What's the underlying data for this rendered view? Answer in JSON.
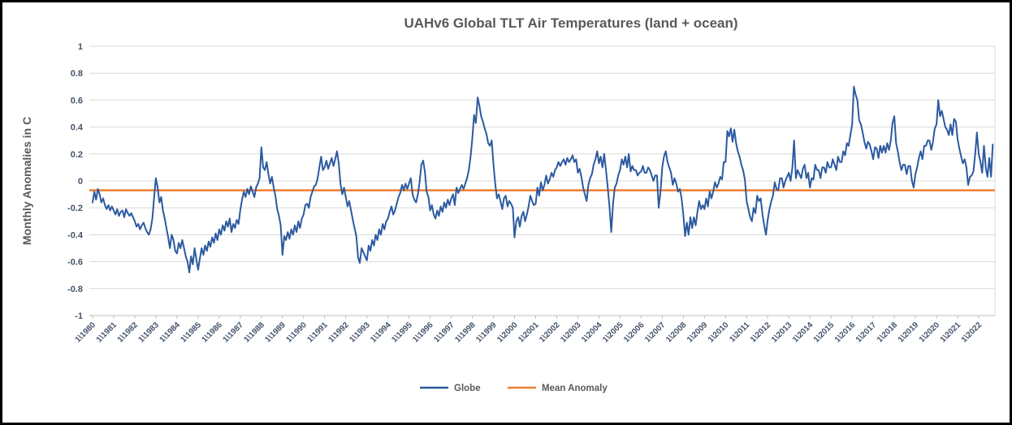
{
  "chart_data": {
    "type": "line",
    "title": "UAHv6 Global TLT Air Temperatures (land + ocean)",
    "xlabel": "",
    "ylabel": "Monthly Anomalies in C",
    "ylim": [
      -1,
      1
    ],
    "grid": true,
    "legend_position": "bottom",
    "colors": {
      "globe_line": "#2C5AA0",
      "mean_line": "#ED7D31",
      "gridline": "#D9D9D9",
      "axis_line": "#BFBFBF",
      "tick_text": "#44546A",
      "title_text": "#595959"
    },
    "y_tick_labels": [
      "1",
      "0.8",
      "0.6",
      "0.4",
      "0.2",
      "0",
      "-0.2",
      "-0.4",
      "-0.6",
      "-0.8",
      "-1"
    ],
    "y_tick_values": [
      1,
      0.8,
      0.6,
      0.4,
      0.2,
      0,
      -0.2,
      -0.4,
      -0.6,
      -0.8,
      -1
    ],
    "x_tick_labels": [
      "1\\1980",
      "1\\1981",
      "1\\1982",
      "1\\1983",
      "1\\1984",
      "1\\1985",
      "1\\1986",
      "1\\1987",
      "1\\1988",
      "1\\1989",
      "1\\1990",
      "1\\1991",
      "1\\1992",
      "1\\1993",
      "1\\1994",
      "1\\1995",
      "1\\1996",
      "1\\1997",
      "1\\1998",
      "1\\1999",
      "1\\2000",
      "1\\2001",
      "1\\2002",
      "1\\2003",
      "1\\2004",
      "1\\2005",
      "1\\2006",
      "1\\2007",
      "1\\2008",
      "1\\2009",
      "1\\2010",
      "1\\2011",
      "1\\2012",
      "1\\2013",
      "1\\2014",
      "1\\2015",
      "1\\2016",
      "1\\2017",
      "1\\2018",
      "1\\2019",
      "1\\2020",
      "1\\2021",
      "1\\2022"
    ],
    "x_start_month": "1980-01",
    "x_end_month": "2022-09",
    "series": [
      {
        "name": "Globe",
        "values": [
          -0.16,
          -0.08,
          -0.14,
          -0.06,
          -0.1,
          -0.16,
          -0.13,
          -0.18,
          -0.21,
          -0.18,
          -0.22,
          -0.19,
          -0.22,
          -0.25,
          -0.21,
          -0.26,
          -0.23,
          -0.22,
          -0.27,
          -0.21,
          -0.24,
          -0.26,
          -0.24,
          -0.27,
          -0.3,
          -0.34,
          -0.32,
          -0.36,
          -0.33,
          -0.31,
          -0.35,
          -0.38,
          -0.4,
          -0.36,
          -0.28,
          -0.12,
          0.02,
          -0.05,
          -0.16,
          -0.12,
          -0.22,
          -0.28,
          -0.35,
          -0.42,
          -0.5,
          -0.4,
          -0.44,
          -0.52,
          -0.54,
          -0.46,
          -0.5,
          -0.44,
          -0.5,
          -0.56,
          -0.6,
          -0.68,
          -0.56,
          -0.62,
          -0.5,
          -0.58,
          -0.66,
          -0.58,
          -0.5,
          -0.55,
          -0.48,
          -0.52,
          -0.45,
          -0.49,
          -0.42,
          -0.46,
          -0.39,
          -0.44,
          -0.36,
          -0.4,
          -0.33,
          -0.37,
          -0.3,
          -0.34,
          -0.28,
          -0.38,
          -0.32,
          -0.35,
          -0.29,
          -0.32,
          -0.22,
          -0.14,
          -0.08,
          -0.12,
          -0.06,
          -0.1,
          -0.04,
          -0.08,
          -0.12,
          -0.05,
          -0.02,
          0.02,
          0.25,
          0.1,
          0.08,
          0.14,
          0.05,
          -0.02,
          0.03,
          -0.05,
          -0.11,
          -0.21,
          -0.26,
          -0.33,
          -0.55,
          -0.41,
          -0.44,
          -0.38,
          -0.43,
          -0.36,
          -0.4,
          -0.33,
          -0.38,
          -0.3,
          -0.35,
          -0.28,
          -0.25,
          -0.18,
          -0.17,
          -0.2,
          -0.12,
          -0.08,
          -0.04,
          -0.03,
          0.02,
          0.1,
          0.18,
          0.08,
          0.1,
          0.15,
          0.09,
          0.13,
          0.17,
          0.11,
          0.16,
          0.22,
          0.13,
          -0.02,
          -0.1,
          -0.05,
          -0.12,
          -0.19,
          -0.15,
          -0.22,
          -0.29,
          -0.35,
          -0.41,
          -0.57,
          -0.61,
          -0.5,
          -0.53,
          -0.56,
          -0.59,
          -0.48,
          -0.52,
          -0.44,
          -0.48,
          -0.4,
          -0.44,
          -0.36,
          -0.4,
          -0.32,
          -0.36,
          -0.3,
          -0.28,
          -0.23,
          -0.19,
          -0.25,
          -0.22,
          -0.17,
          -0.12,
          -0.09,
          -0.03,
          -0.07,
          -0.02,
          -0.06,
          -0.02,
          0.02,
          -0.1,
          -0.14,
          -0.16,
          -0.1,
          -0.01,
          0.12,
          0.15,
          0.07,
          -0.08,
          -0.12,
          -0.22,
          -0.18,
          -0.25,
          -0.28,
          -0.22,
          -0.26,
          -0.19,
          -0.23,
          -0.16,
          -0.2,
          -0.14,
          -0.18,
          -0.13,
          -0.1,
          -0.18,
          -0.05,
          -0.09,
          -0.06,
          -0.03,
          -0.06,
          -0.02,
          0.02,
          0.08,
          0.18,
          0.32,
          0.49,
          0.43,
          0.62,
          0.56,
          0.48,
          0.44,
          0.39,
          0.35,
          0.28,
          0.26,
          0.3,
          0.12,
          -0.02,
          -0.13,
          -0.1,
          -0.15,
          -0.21,
          -0.13,
          -0.11,
          -0.19,
          -0.15,
          -0.17,
          -0.2,
          -0.42,
          -0.3,
          -0.27,
          -0.34,
          -0.26,
          -0.23,
          -0.3,
          -0.25,
          -0.19,
          -0.11,
          -0.15,
          -0.18,
          -0.17,
          -0.05,
          -0.11,
          -0.01,
          -0.07,
          -0.03,
          0.04,
          -0.02,
          0.01,
          0.06,
          0.03,
          0.08,
          0.1,
          0.14,
          0.11,
          0.14,
          0.16,
          0.12,
          0.17,
          0.14,
          0.16,
          0.19,
          0.14,
          0.16,
          0.06,
          0.09,
          0.03,
          -0.05,
          -0.1,
          -0.15,
          -0.03,
          0.02,
          0.05,
          0.12,
          0.16,
          0.22,
          0.13,
          0.18,
          0.1,
          0.2,
          0.08,
          -0.05,
          -0.19,
          -0.38,
          -0.17,
          -0.05,
          -0.02,
          0.04,
          0.08,
          0.16,
          0.12,
          0.18,
          0.1,
          0.2,
          0.07,
          0.11,
          0.08,
          0.08,
          0.04,
          0.06,
          0.07,
          0.11,
          0.06,
          0.06,
          0.1,
          0.08,
          0.04,
          0.0,
          0.04,
          0.04,
          -0.2,
          -0.08,
          0.1,
          0.18,
          0.22,
          0.14,
          0.1,
          0.06,
          -0.03,
          0.02,
          -0.02,
          -0.08,
          -0.06,
          -0.13,
          -0.25,
          -0.41,
          -0.31,
          -0.4,
          -0.27,
          -0.35,
          -0.27,
          -0.33,
          -0.23,
          -0.15,
          -0.21,
          -0.18,
          -0.21,
          -0.13,
          -0.19,
          -0.08,
          -0.13,
          -0.08,
          -0.01,
          -0.05,
          -0.02,
          0.03,
          0.01,
          0.14,
          0.14,
          0.37,
          0.33,
          0.39,
          0.29,
          0.38,
          0.28,
          0.22,
          0.18,
          0.12,
          0.08,
          0.01,
          -0.15,
          -0.21,
          -0.27,
          -0.3,
          -0.2,
          -0.24,
          -0.11,
          -0.15,
          -0.13,
          -0.25,
          -0.33,
          -0.4,
          -0.29,
          -0.21,
          -0.15,
          -0.11,
          -0.01,
          -0.06,
          -0.07,
          0.02,
          0.02,
          -0.05,
          0.0,
          0.03,
          0.06,
          0.0,
          0.1,
          0.3,
          0.02,
          0.08,
          0.05,
          0.02,
          0.09,
          0.12,
          0.02,
          0.06,
          -0.05,
          0.02,
          0.01,
          0.12,
          0.08,
          0.08,
          0.02,
          0.1,
          0.1,
          0.06,
          0.14,
          0.1,
          0.1,
          0.16,
          0.12,
          0.08,
          0.18,
          0.14,
          0.14,
          0.22,
          0.19,
          0.28,
          0.26,
          0.34,
          0.42,
          0.7,
          0.64,
          0.6,
          0.45,
          0.42,
          0.36,
          0.29,
          0.24,
          0.29,
          0.27,
          0.22,
          0.16,
          0.25,
          0.24,
          0.17,
          0.26,
          0.21,
          0.26,
          0.21,
          0.28,
          0.23,
          0.3,
          0.43,
          0.48,
          0.28,
          0.22,
          0.14,
          0.08,
          0.12,
          0.12,
          0.05,
          0.11,
          0.11,
          0.0,
          -0.05,
          0.05,
          0.1,
          0.17,
          0.22,
          0.16,
          0.26,
          0.26,
          0.3,
          0.3,
          0.23,
          0.29,
          0.39,
          0.42,
          0.6,
          0.48,
          0.52,
          0.46,
          0.4,
          0.38,
          0.34,
          0.42,
          0.34,
          0.46,
          0.44,
          0.31,
          0.24,
          0.18,
          0.13,
          0.16,
          0.1,
          -0.03,
          0.03,
          0.04,
          0.07,
          0.2,
          0.36,
          0.2,
          0.14,
          0.06,
          0.26,
          0.1,
          0.03,
          0.17,
          0.03,
          0.27
        ]
      },
      {
        "name": "Mean Anomaly",
        "constant_value": -0.07
      }
    ]
  }
}
